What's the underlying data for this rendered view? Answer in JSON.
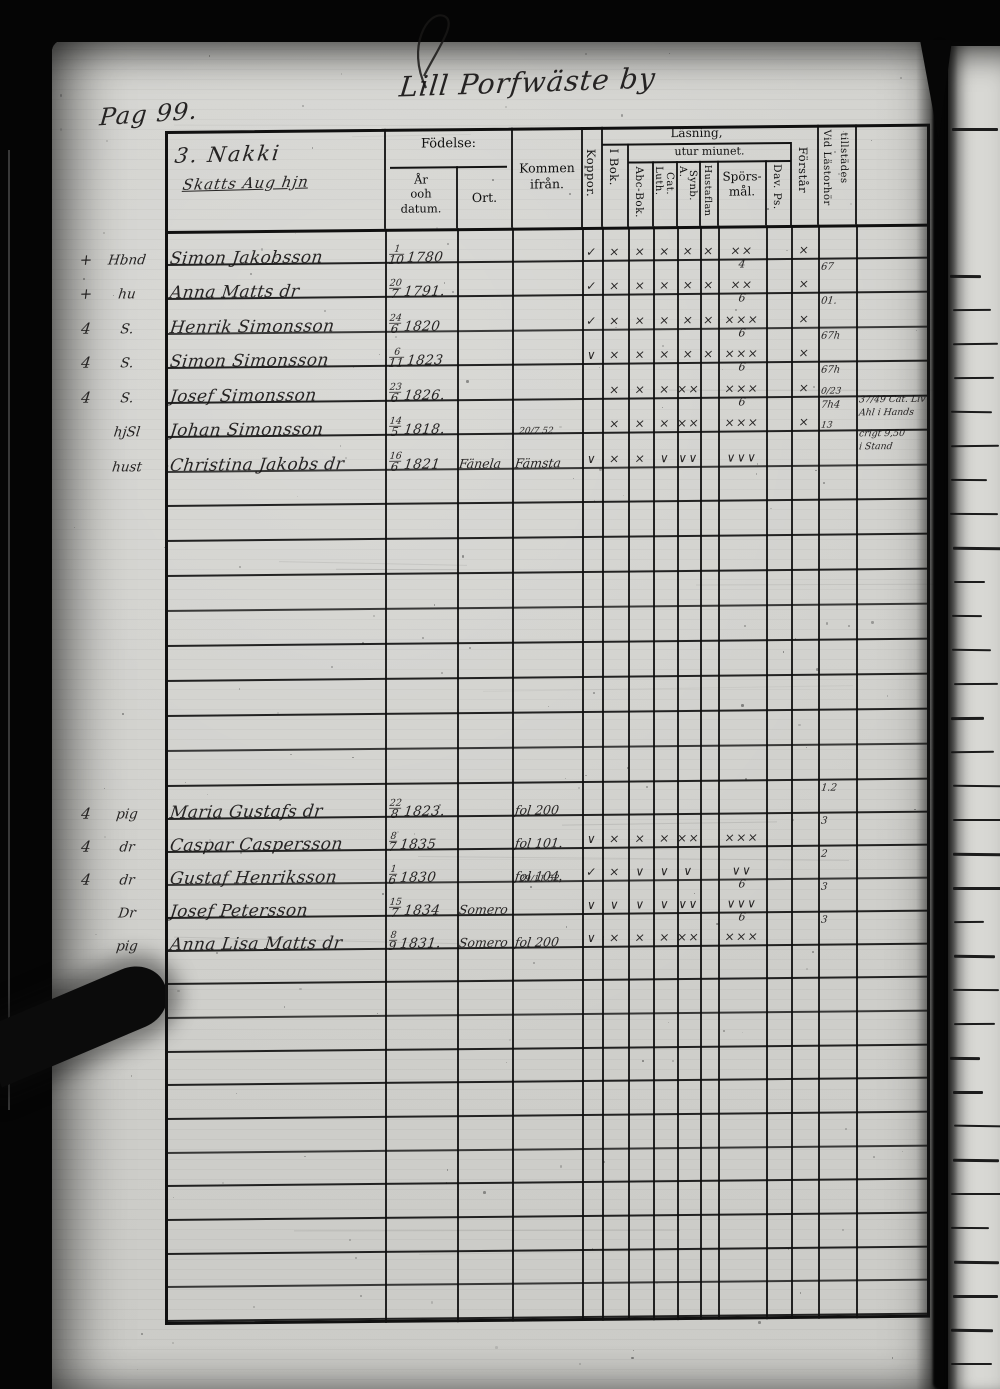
{
  "page": {
    "title": "Lill Porfwäste by",
    "number_label": "Pag 99."
  },
  "colors": {
    "paper": "#d2d2ce",
    "ink": "#1a1a1a",
    "print_black": "#101010",
    "background_black": "#050505"
  },
  "header": {
    "farm_line1": "3. Nakki",
    "farm_line2": "Skatts Aug hjn",
    "fodelse": "Födelse:",
    "ar1": "År",
    "ar2": "ooh",
    "ar3": "datum.",
    "ort": "Ort.",
    "kommen1": "Kommen",
    "kommen2": "ifrån.",
    "koppor": "Koppor.",
    "lasning": "Läsning,",
    "utur": "utur miunet.",
    "ibok": "I Bok.",
    "abcbok": "Abc-Bok.",
    "luth": "Luth.",
    "cat": "Cat.",
    "a": "A.",
    "synb": "Synb.",
    "hustaflan": "Hustaflan",
    "spors1": "Spörs-",
    "spors2": "mål.",
    "davps": "Dav. Ps.",
    "forstar": "Förstår",
    "vid1": "Vid Lästorhör",
    "vid2": "tillstädes"
  },
  "rows": [
    {
      "slot": 0,
      "prefix": "+",
      "title": "Hbnd",
      "name": "Simon Jakobsson",
      "day": "1",
      "mon": "10",
      "year": "1780",
      "ort": "",
      "from": "",
      "from_top": "",
      "marks": {
        "koppor": "✓",
        "ibok": "×",
        "abc": "×",
        "luth": "×",
        "asymb": "×",
        "hust": "×",
        "spors": "××",
        "spors_top": "",
        "davps": "",
        "forstar": "×",
        "vid": "",
        "vid_top": ""
      },
      "notes": []
    },
    {
      "slot": 1,
      "prefix": "+",
      "title": "hu",
      "name": "Anna Matts dr",
      "day": "20",
      "mon": "7",
      "year": "1791.",
      "ort": "",
      "from": "",
      "from_top": "",
      "marks": {
        "koppor": "✓",
        "ibok": "×",
        "abc": "×",
        "luth": "×",
        "asymb": "×",
        "hust": "×",
        "spors": "××",
        "spors_top": "4",
        "davps": "",
        "forstar": "×",
        "vid": "67",
        "vid_top": ""
      },
      "notes": []
    },
    {
      "slot": 2,
      "prefix": "4",
      "title": "S.",
      "name": "Henrik Simonsson",
      "day": "24",
      "mon": "6",
      "year": "1820",
      "ort": "",
      "from": "",
      "from_top": "",
      "marks": {
        "koppor": "✓",
        "ibok": "×",
        "abc": "×",
        "luth": "×",
        "asymb": "×",
        "hust": "×",
        "spors": "×××",
        "spors_top": "6",
        "davps": "",
        "forstar": "×",
        "vid": "01.",
        "vid_top": ""
      },
      "notes": []
    },
    {
      "slot": 3,
      "prefix": "4",
      "title": "S.",
      "name": "Simon Simonsson",
      "day": "6",
      "mon": "11",
      "year": "1823",
      "ort": "",
      "from": "",
      "from_top": "",
      "marks": {
        "koppor": "∨",
        "ibok": "×",
        "abc": "×",
        "luth": "×",
        "asymb": "×",
        "hust": "×",
        "spors": "×××",
        "spors_top": "6",
        "davps": "",
        "forstar": "×",
        "vid": "67h",
        "vid_top": ""
      },
      "notes": []
    },
    {
      "slot": 4,
      "prefix": "4",
      "title": "S.",
      "name": "Josef Simonsson",
      "day": "23",
      "mon": "6",
      "year": "1826.",
      "ort": "",
      "from": "",
      "from_top": "",
      "marks": {
        "koppor": "",
        "ibok": "×",
        "abc": "×",
        "luth": "×",
        "asymb": "××",
        "hust": "",
        "spors": "×××",
        "spors_top": "6",
        "davps": "",
        "forstar": "×",
        "vid": "67h",
        "vid_top": ""
      },
      "notes": []
    },
    {
      "slot": 5,
      "prefix": "",
      "title": "hjSl",
      "name": "Johan Simonsson",
      "day": "14",
      "mon": "5",
      "year": "1818.",
      "ort": "",
      "from": "",
      "from_top": "",
      "marks": {
        "koppor": "",
        "ibok": "×",
        "abc": "×",
        "luth": "×",
        "asymb": "××",
        "hust": "",
        "spors": "×××",
        "spors_top": "6",
        "davps": "",
        "forstar": "×",
        "vid": "7h4",
        "vid_top": "0/23"
      },
      "notes": [
        "37/49 Cat. Liv",
        "Ahl i Hands"
      ]
    },
    {
      "slot": 6,
      "prefix": "",
      "title": "hust",
      "name": "Christina Jakobs dr",
      "day": "16",
      "mon": "6",
      "year": "1821",
      "ort": "Fänela",
      "from": "Fämsta",
      "from_top": "20/7 52",
      "marks": {
        "koppor": "∨",
        "ibok": "×",
        "abc": "×",
        "luth": "∨",
        "asymb": "∨∨",
        "hust": "",
        "spors": "∨∨∨",
        "spors_top": "",
        "davps": "",
        "forstar": "",
        "vid": "",
        "vid_top": "13"
      },
      "notes": [
        "crigt 9,50",
        "i Stand"
      ]
    },
    {
      "slot": 16,
      "prefix": "4",
      "title": "pig",
      "name": "Maria Gustafs dr",
      "day": "22",
      "mon": "8",
      "year": "1823.",
      "ort": "",
      "from": "fol 200",
      "from_top": "",
      "marks": {
        "koppor": "",
        "ibok": "",
        "abc": "",
        "luth": "",
        "asymb": "",
        "hust": "",
        "spors": "",
        "spors_top": "",
        "davps": "",
        "forstar": "",
        "vid": "1.2",
        "vid_top": ""
      },
      "notes": []
    },
    {
      "slot": 17,
      "prefix": "4",
      "title": "dr",
      "name": "Caspar Caspersson",
      "day": "8",
      "mon": "7",
      "year": "1835",
      "ort": "",
      "from": "fol 101.",
      "from_top": "",
      "marks": {
        "koppor": "∨",
        "ibok": "×",
        "abc": "×",
        "luth": "×",
        "asymb": "××",
        "hust": "",
        "spors": "×××",
        "spors_top": "",
        "davps": "",
        "forstar": "",
        "vid": "3",
        "vid_top": ""
      },
      "notes": []
    },
    {
      "slot": 18,
      "prefix": "4",
      "title": "dr",
      "name": "Gustaf Henriksson",
      "day": "1",
      "mon": "6",
      "year": "1830",
      "ort": "",
      "from": "fol 104.",
      "from_top": "",
      "marks": {
        "koppor": "✓",
        "ibok": "×",
        "abc": "∨",
        "luth": "∨",
        "asymb": "∨",
        "hust": "",
        "spors": "∨∨",
        "spors_top": "",
        "davps": "",
        "forstar": "",
        "vid": "2",
        "vid_top": ""
      },
      "notes": []
    },
    {
      "slot": 19,
      "prefix": "",
      "title": "Dr",
      "name": "Josef Petersson",
      "day": "15",
      "mon": "7",
      "year": "1834",
      "ort": "Somero",
      "from": "",
      "from_top": "29/11 52,",
      "marks": {
        "koppor": "∨",
        "ibok": "∨",
        "abc": "∨",
        "luth": "∨",
        "asymb": "∨∨",
        "hust": "",
        "spors": "∨∨∨",
        "spors_top": "6",
        "davps": "",
        "forstar": "",
        "vid": "3",
        "vid_top": ""
      },
      "notes": []
    },
    {
      "slot": 20,
      "prefix": "",
      "title": "pig",
      "name": "Anna Lisa Matts dr",
      "day": "8",
      "mon": "9",
      "year": "1831.",
      "ort": "Somero",
      "from": "fol 200",
      "from_top": "",
      "marks": {
        "koppor": "∨",
        "ibok": "×",
        "abc": "×",
        "luth": "×",
        "asymb": "××",
        "hust": "",
        "spors": "×××",
        "spors_top": "6",
        "davps": "",
        "forstar": "",
        "vid": "3",
        "vid_top": ""
      },
      "notes": []
    }
  ]
}
